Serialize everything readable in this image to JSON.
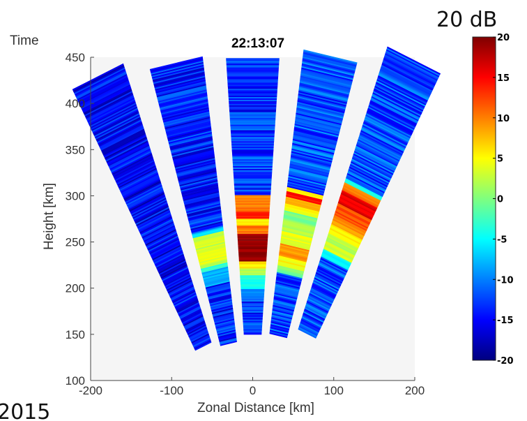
{
  "chart_data": {
    "type": "heatmap",
    "title": "22:13:07",
    "xlabel": "Zonal Distance [km]",
    "ylabel": "Height [km]",
    "corner_label": "Time",
    "corner_year": "2015",
    "xlim": [
      -200,
      200
    ],
    "ylim": [
      100,
      450
    ],
    "x_ticks": [
      -200,
      -100,
      0,
      100,
      200
    ],
    "y_ticks": [
      100,
      150,
      200,
      250,
      300,
      350,
      400,
      450
    ],
    "grid": false,
    "colorbar": {
      "title": "20 dB",
      "range": [
        -20,
        20
      ],
      "ticks": [
        20,
        15,
        10,
        5,
        0,
        -5,
        -10,
        -15,
        -20
      ],
      "colors": [
        "#00007f",
        "#0000ff",
        "#007fff",
        "#00ffff",
        "#7fff7f",
        "#ffff00",
        "#ff7f00",
        "#ff0000",
        "#7f0000"
      ]
    },
    "beams": [
      {
        "name": "beam-1",
        "zenith_deg": -24,
        "range_km": [
          150,
          470
        ],
        "background_db": -15,
        "bands": []
      },
      {
        "name": "beam-2",
        "zenith_deg": -12,
        "range_km": [
          143,
          455
        ],
        "background_db": -14,
        "bands": [
          {
            "h": [
              205,
              220
            ],
            "db": -8
          },
          {
            "h": [
              220,
              225
            ],
            "db": -3
          },
          {
            "h": [
              225,
              230
            ],
            "db": 2
          },
          {
            "h": [
              230,
              245
            ],
            "db": 4
          },
          {
            "h": [
              245,
              258
            ],
            "db": 3
          },
          {
            "h": [
              258,
              263
            ],
            "db": -6
          }
        ]
      },
      {
        "name": "beam-3",
        "zenith_deg": 0,
        "range_km": [
          150,
          450
        ],
        "background_db": -13,
        "bands": [
          {
            "h": [
              188,
              200
            ],
            "db": -10
          },
          {
            "h": [
              200,
              215
            ],
            "db": -4
          },
          {
            "h": [
              215,
              222
            ],
            "db": 2
          },
          {
            "h": [
              222,
              230
            ],
            "db": 6
          },
          {
            "h": [
              230,
              260
            ],
            "db": 19
          },
          {
            "h": [
              260,
              268
            ],
            "db": 10
          },
          {
            "h": [
              268,
              276
            ],
            "db": 5
          },
          {
            "h": [
              276,
              284
            ],
            "db": 14
          },
          {
            "h": [
              284,
              301
            ],
            "db": 10
          }
        ]
      },
      {
        "name": "beam-4",
        "zenith_deg": 12,
        "range_km": [
          152,
          462
        ],
        "background_db": -12,
        "bands": [
          {
            "h": [
              215,
              222
            ],
            "db": 0
          },
          {
            "h": [
              222,
              232
            ],
            "db": 5
          },
          {
            "h": [
              232,
              245
            ],
            "db": 9
          },
          {
            "h": [
              245,
              258
            ],
            "db": 4
          },
          {
            "h": [
              258,
              270
            ],
            "db": 2
          },
          {
            "h": [
              270,
              280
            ],
            "db": 0
          },
          {
            "h": [
              280,
              288
            ],
            "db": 5
          },
          {
            "h": [
              288,
              296
            ],
            "db": 9
          },
          {
            "h": [
              296,
              302
            ],
            "db": 14
          },
          {
            "h": [
              302,
              306
            ],
            "db": 5
          }
        ]
      },
      {
        "name": "beam-5",
        "zenith_deg": 24,
        "range_km": [
          165,
          490
        ],
        "background_db": -12,
        "bands": [
          {
            "h": [
              228,
              236
            ],
            "db": -5
          },
          {
            "h": [
              236,
              244
            ],
            "db": 3
          },
          {
            "h": [
              244,
              252
            ],
            "db": 2
          },
          {
            "h": [
              252,
              262
            ],
            "db": 5
          },
          {
            "h": [
              262,
              272
            ],
            "db": 9
          },
          {
            "h": [
              272,
              284
            ],
            "db": 12
          },
          {
            "h": [
              284,
              297
            ],
            "db": 16
          },
          {
            "h": [
              297,
              305
            ],
            "db": 10
          },
          {
            "h": [
              305,
              310
            ],
            "db": -4
          }
        ]
      }
    ]
  }
}
